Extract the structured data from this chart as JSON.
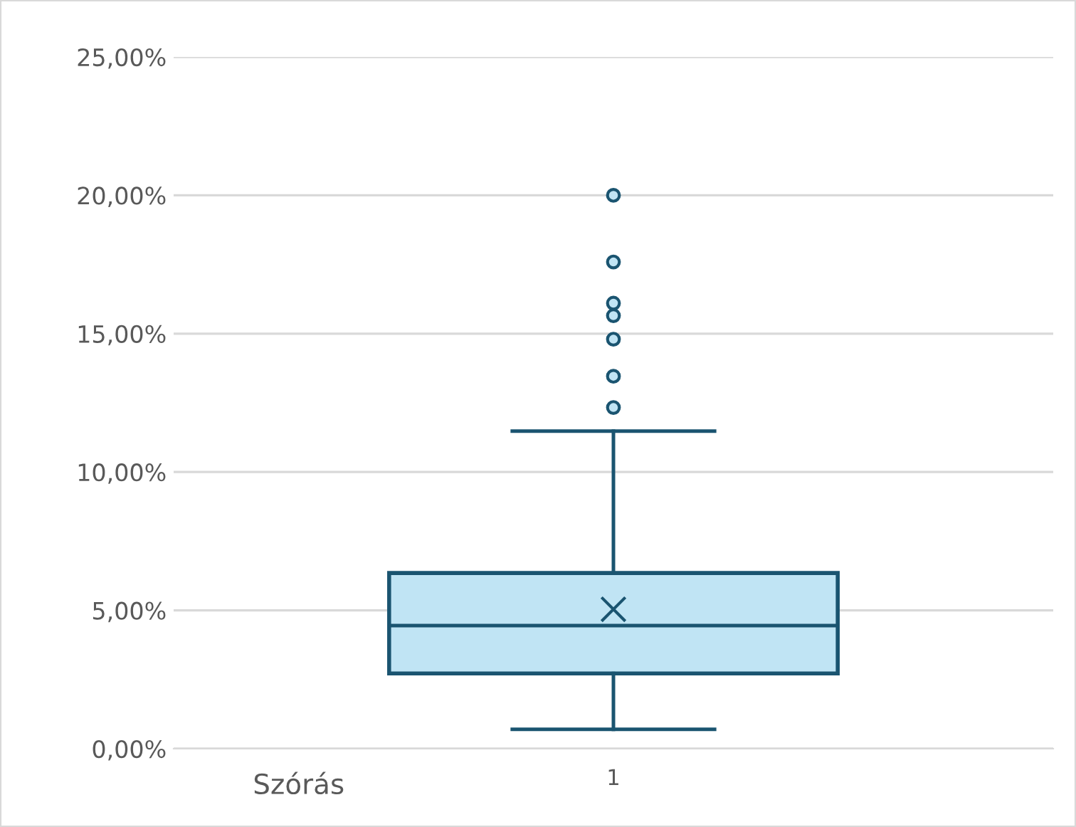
{
  "chart_data": {
    "type": "box",
    "categories": [
      "1"
    ],
    "xlabel": "Szórás",
    "boxes": [
      {
        "low": 0.7,
        "q1": 2.72,
        "median": 4.45,
        "q3": 6.35,
        "high": 11.48,
        "mean": 5.04,
        "outliers": [
          12.33,
          13.46,
          14.8,
          15.65,
          16.1,
          17.59,
          20.0
        ]
      }
    ],
    "color": "#c0e4f4",
    "ylim": [
      0,
      25
    ],
    "yticks": [
      {
        "value": 0,
        "label": "0,00%"
      },
      {
        "value": 5,
        "label": "5,00%"
      },
      {
        "value": 10,
        "label": "10,00%"
      },
      {
        "value": 15,
        "label": "15,00%"
      },
      {
        "value": 20,
        "label": "20,00%"
      },
      {
        "value": 25,
        "label": "25,00%"
      }
    ],
    "grid": "y",
    "legend": false
  }
}
